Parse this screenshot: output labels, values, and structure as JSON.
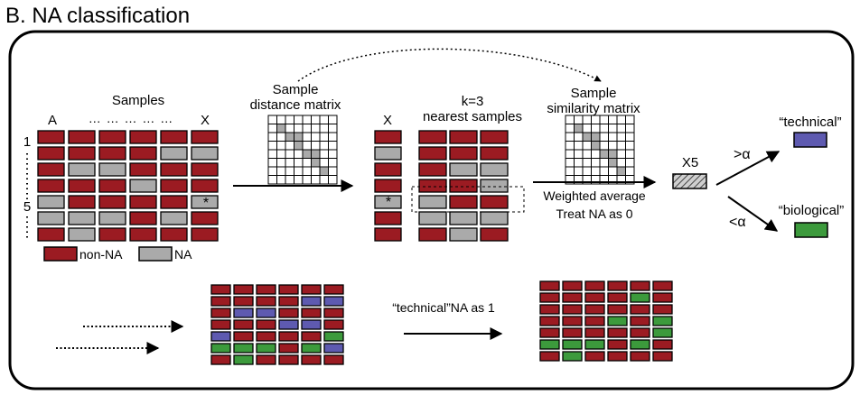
{
  "colors": {
    "non_na": "#9b1b22",
    "na": "#aaaaaa",
    "technical": "#5e5ab0",
    "biological": "#3c9a3c",
    "cell_border": "#000000"
  },
  "title": "B. NA classification",
  "left_matrix": {
    "header": "Samples",
    "col_first": "A",
    "col_dots": "… … … … …",
    "col_last": "X",
    "row_first": "1",
    "row_mark": "5",
    "asterisk": "*",
    "rows": [
      [
        "R",
        "R",
        "R",
        "R",
        "R",
        "R"
      ],
      [
        "R",
        "R",
        "R",
        "R",
        "G",
        "G"
      ],
      [
        "R",
        "G",
        "G",
        "R",
        "R",
        "R"
      ],
      [
        "R",
        "R",
        "R",
        "G",
        "R",
        "R"
      ],
      [
        "G",
        "R",
        "R",
        "R",
        "R",
        "G"
      ],
      [
        "G",
        "G",
        "G",
        "R",
        "G",
        "R"
      ],
      [
        "R",
        "G",
        "R",
        "R",
        "R",
        "R"
      ]
    ]
  },
  "legend": {
    "non_na": "non-NA",
    "na": "NA"
  },
  "distance_matrix": {
    "label_line1": "Sample",
    "label_line2": "distance matrix"
  },
  "similarity_matrix": {
    "label_line1": "Sample",
    "label_line2": "similarity matrix"
  },
  "x_column": {
    "label": "X",
    "asterisk": "*",
    "cells": [
      "R",
      "G",
      "R",
      "R",
      "G",
      "R",
      "R"
    ]
  },
  "nearest": {
    "label_line1": "k=3",
    "label_line2": "nearest samples",
    "rows": [
      [
        "R",
        "R",
        "R"
      ],
      [
        "R",
        "R",
        "R"
      ],
      [
        "R",
        "G",
        "G"
      ],
      [
        "R",
        "R",
        "G"
      ],
      [
        "G",
        "R",
        "R"
      ],
      [
        "G",
        "G",
        "G"
      ],
      [
        "R",
        "G",
        "R"
      ]
    ]
  },
  "weighted": {
    "line1": "Weighted average",
    "line2": "Treat NA as 0"
  },
  "repeat": {
    "label": "X5"
  },
  "classify": {
    "gt": ">α",
    "lt": "<α",
    "technical": "“technical”",
    "biological": "“biological”"
  },
  "bottom": {
    "label": "“technical”NA as 1",
    "before_rows": [
      [
        "R",
        "R",
        "R",
        "R",
        "R",
        "R"
      ],
      [
        "R",
        "R",
        "R",
        "R",
        "B",
        "B"
      ],
      [
        "R",
        "B",
        "B",
        "R",
        "R",
        "R"
      ],
      [
        "R",
        "R",
        "R",
        "B",
        "B",
        "R"
      ],
      [
        "B",
        "R",
        "R",
        "R",
        "R",
        "G"
      ],
      [
        "G",
        "G",
        "G",
        "R",
        "G",
        "B"
      ],
      [
        "R",
        "G",
        "R",
        "R",
        "R",
        "R"
      ]
    ],
    "after_rows": [
      [
        "R",
        "R",
        "R",
        "R",
        "R",
        "R"
      ],
      [
        "R",
        "R",
        "R",
        "R",
        "G",
        "R"
      ],
      [
        "R",
        "R",
        "R",
        "R",
        "R",
        "R"
      ],
      [
        "R",
        "R",
        "R",
        "G",
        "R",
        "G"
      ],
      [
        "R",
        "R",
        "R",
        "R",
        "R",
        "G"
      ],
      [
        "G",
        "G",
        "G",
        "R",
        "G",
        "R"
      ],
      [
        "R",
        "G",
        "R",
        "R",
        "R",
        "R"
      ]
    ]
  }
}
